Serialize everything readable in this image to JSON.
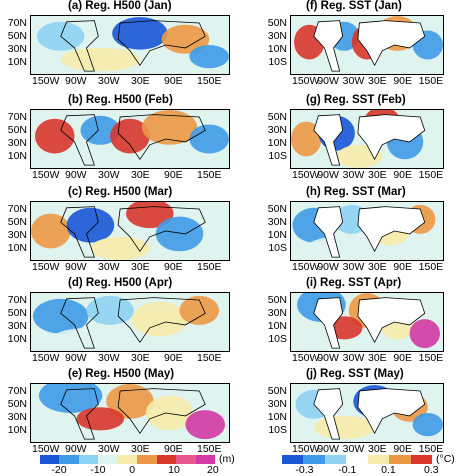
{
  "palette": {
    "deep_blue": "#1a56d6",
    "blue": "#3f9be6",
    "light_blue": "#8fd3f2",
    "pale": "#dff3ef",
    "white": "#ffffff",
    "light_yellow": "#f6ebaa",
    "orange": "#ec9845",
    "red": "#d9362b",
    "pink": "#e8588d",
    "magenta": "#d23aa4",
    "land_line": "#000000"
  },
  "h500": {
    "panels": [
      {
        "title": "(a) Reg. H500 (Jan)"
      },
      {
        "title": "(b) Reg. H500 (Feb)"
      },
      {
        "title": "(c) Reg. H500 (Mar)"
      },
      {
        "title": "(d) Reg. H500 (Apr)"
      },
      {
        "title": "(e) Reg. H500 (May)"
      }
    ],
    "lat_labels": [
      "70N",
      "50N",
      "30N",
      "10N"
    ],
    "lon_labels": [
      "150W",
      "90W",
      "30W",
      "30E",
      "90E",
      "150E"
    ],
    "colorbar": {
      "ticks": [
        "-20",
        "-10",
        "0",
        "10",
        "20"
      ],
      "unit": "(m)"
    }
  },
  "sst": {
    "panels": [
      {
        "title": "(f) Reg. SST (Jan)"
      },
      {
        "title": "(g) Reg. SST (Feb)"
      },
      {
        "title": "(h) Reg. SST (Mar)"
      },
      {
        "title": "(i) Reg. SST (Apr)"
      },
      {
        "title": "(j) Reg. SST (May)"
      }
    ],
    "lat_labels": [
      "50N",
      "30N",
      "10N",
      "10S"
    ],
    "lon_labels": [
      "150W",
      "90W",
      "30W",
      "30E",
      "90E",
      "150E"
    ],
    "colorbar": {
      "ticks": [
        "-0.3",
        "-0.1",
        "0.1",
        "0.3"
      ],
      "unit": "(°C)"
    }
  }
}
